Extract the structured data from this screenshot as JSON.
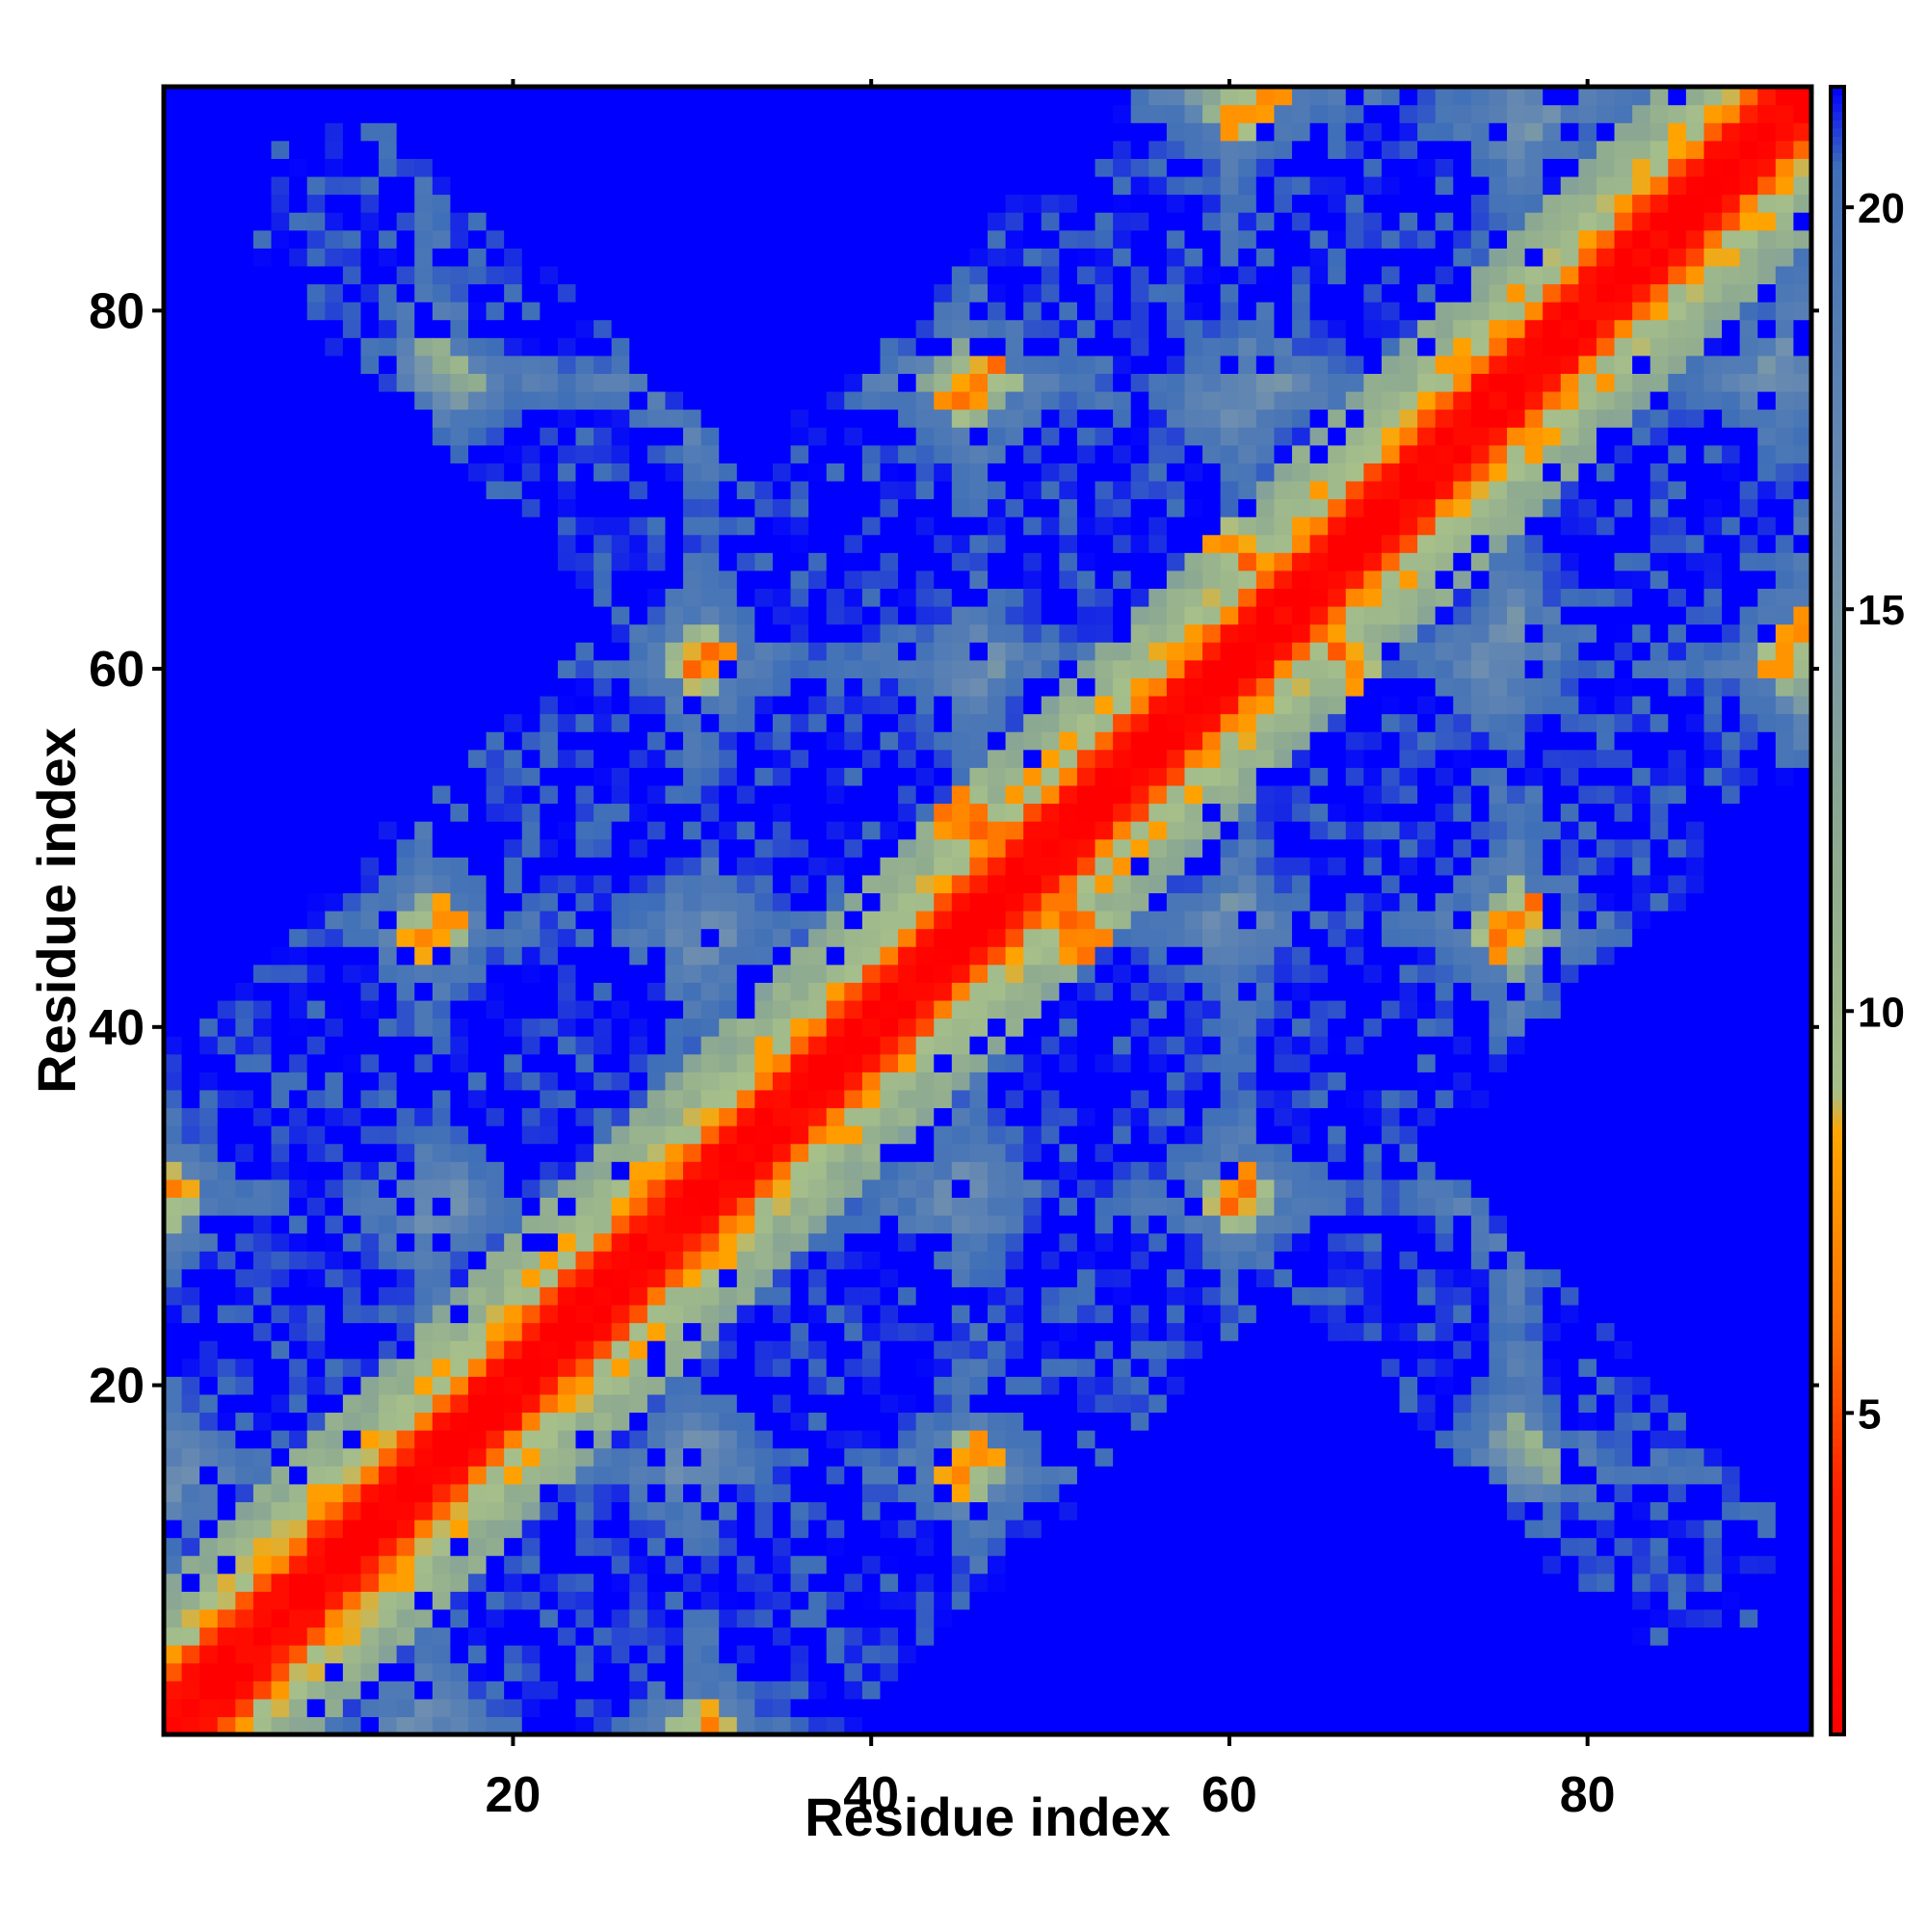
{
  "chart_data": {
    "type": "heatmap",
    "title": "",
    "xlabel": "Residue index",
    "ylabel": "Residue index",
    "n_residues": 92,
    "xlim": [
      1,
      92
    ],
    "ylim": [
      1,
      92
    ],
    "x_ticks": [
      20,
      40,
      60,
      80
    ],
    "y_ticks": [
      20,
      40,
      60,
      80
    ],
    "colorbar": {
      "range": [
        1,
        21.5
      ],
      "ticks": [
        5,
        10,
        15,
        20
      ],
      "stops": [
        {
          "value": 1.0,
          "color": "#ff0000"
        },
        {
          "value": 4.0,
          "color": "#ff2000"
        },
        {
          "value": 6.0,
          "color": "#ff7000"
        },
        {
          "value": 8.5,
          "color": "#ffa500"
        },
        {
          "value": 9.0,
          "color": "#a7c08a"
        },
        {
          "value": 12.0,
          "color": "#8eaa90"
        },
        {
          "value": 16.0,
          "color": "#6f8fb0"
        },
        {
          "value": 20.5,
          "color": "#3f6fb8"
        },
        {
          "value": 21.5,
          "color": "#0000ff"
        }
      ]
    },
    "value_description": "pairwise residue distance map; diagonal band near 1, off-diagonal contact bands, far pairs saturated blue",
    "contact_bands": [
      {
        "type": "anti",
        "a": 18,
        "b": 79
      },
      {
        "type": "anti",
        "a": 8,
        "b": 88
      },
      {
        "type": "anti",
        "a": 40,
        "b": 58
      },
      {
        "type": "anti",
        "a": 54,
        "b": 73
      },
      {
        "type": "par",
        "i1": 33,
        "i2": 3
      },
      {
        "type": "par",
        "i1": 63,
        "i2": 33
      },
      {
        "type": "par",
        "i1": 93,
        "i2": 63
      }
    ],
    "domain_centers": [
      8,
      23,
      38,
      53,
      68,
      84
    ],
    "grid": false,
    "legend": "colorbar-right"
  }
}
